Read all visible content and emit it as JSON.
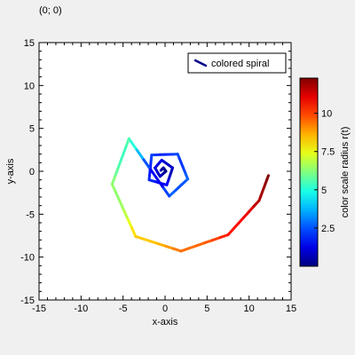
{
  "coordinate_readout": "(0; 0)",
  "chart_data": {
    "type": "line",
    "title": "",
    "xlabel": "x-axis",
    "ylabel": "y-axis",
    "xlim": [
      -15,
      15
    ],
    "ylim": [
      -15,
      15
    ],
    "xticks": [
      -15,
      -10,
      -5,
      0,
      5,
      10,
      15
    ],
    "yticks": [
      -15,
      -10,
      -5,
      0,
      5,
      10,
      15
    ],
    "grid": false,
    "legend_position": "top-right",
    "legend_swatch_color": "#00008b",
    "series": [
      {
        "name": "colored spiral",
        "color_by": "radius",
        "curve": "spiral r(t) = 0.5 * e^(0.2 t)",
        "points": [
          {
            "x": -0.5,
            "y": 0.1
          },
          {
            "x": -0.2,
            "y": 0.4
          },
          {
            "x": 0.1,
            "y": 0.0
          },
          {
            "x": -0.6,
            "y": -0.6
          },
          {
            "x": -1.2,
            "y": 0.4
          },
          {
            "x": -0.4,
            "y": 1.3
          },
          {
            "x": 0.9,
            "y": 0.4
          },
          {
            "x": 0.2,
            "y": -1.6
          },
          {
            "x": -1.9,
            "y": -1.0
          },
          {
            "x": -1.6,
            "y": 1.9
          },
          {
            "x": 1.5,
            "y": 2.0
          },
          {
            "x": 2.7,
            "y": -0.9
          },
          {
            "x": 0.5,
            "y": -2.9
          },
          {
            "x": -4.3,
            "y": 3.8
          },
          {
            "x": -6.3,
            "y": -1.5
          },
          {
            "x": -3.5,
            "y": -7.6
          },
          {
            "x": 1.9,
            "y": -9.3
          },
          {
            "x": 7.5,
            "y": -7.4
          },
          {
            "x": 11.2,
            "y": -3.4
          },
          {
            "x": 12.3,
            "y": -0.5
          }
        ]
      }
    ],
    "colorbar": {
      "label": "color scale radius r(t)",
      "colormap": "jet",
      "range": [
        0,
        12.3
      ],
      "ticks": [
        2.5,
        5,
        7.5,
        10
      ]
    }
  }
}
